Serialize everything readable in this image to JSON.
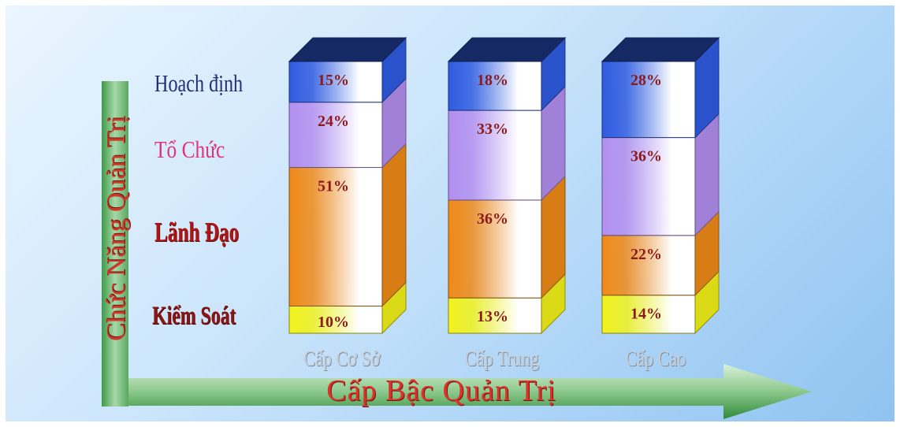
{
  "colors": {
    "hoach_dinh": "#2f5be0",
    "to_chuc": "#b38ff0",
    "lanh_dao": "#f08a18",
    "kiem_soat": "#f2f21a",
    "value_text": "#8b1a1a"
  },
  "chart_data": {
    "type": "bar",
    "stacked": true,
    "categories": [
      "Cấp Cơ Sở",
      "Cấp Trung",
      "Cấp Cao"
    ],
    "series": [
      {
        "name": "Kiểm Soát",
        "values": [
          10,
          13,
          14
        ],
        "labels": [
          "10%",
          "13%",
          "14%"
        ],
        "color": "#f2f21a"
      },
      {
        "name": "Lãnh Đạo",
        "values": [
          51,
          36,
          22
        ],
        "labels": [
          "51%",
          "36%",
          "22%"
        ],
        "color": "#f08a18"
      },
      {
        "name": "Tổ Chức",
        "values": [
          24,
          33,
          36
        ],
        "labels": [
          "24%",
          "33%",
          "36%"
        ],
        "color": "#b38ff0"
      },
      {
        "name": "Hoạch định",
        "values": [
          15,
          18,
          28
        ],
        "labels": [
          "15%",
          "18%",
          "28%"
        ],
        "color": "#2f5be0"
      }
    ],
    "xlabel": "Cấp Bậc Quản Trị",
    "ylabel": "Chức Năng Quản Trị",
    "ylim": [
      0,
      100
    ],
    "style": "3d-stacked-columns",
    "legend": "left-row-labels"
  }
}
